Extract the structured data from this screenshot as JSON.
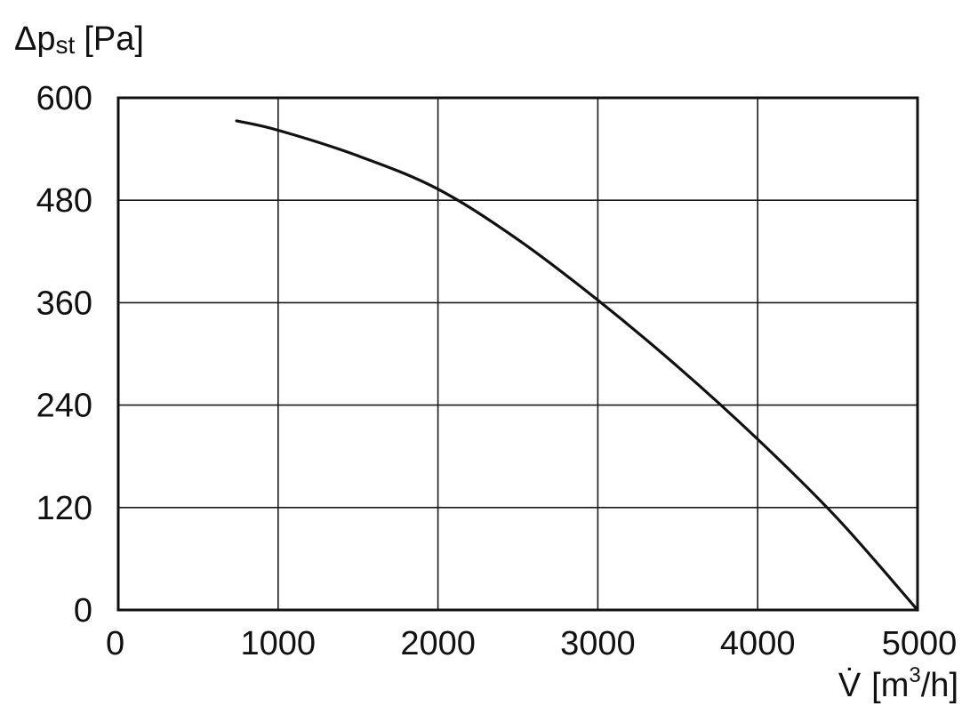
{
  "chart_data": {
    "type": "line",
    "ylabel": {
      "symbol": "Δp",
      "subscript": "st",
      "unit": "[Pa]"
    },
    "xlabel": {
      "symbol": "V̇",
      "unit_prefix": "[m",
      "unit_sup": "3",
      "unit_suffix": "/h]"
    },
    "xlim": [
      0,
      5000
    ],
    "ylim": [
      0,
      600
    ],
    "x_ticks": [
      0,
      1000,
      2000,
      3000,
      4000,
      5000
    ],
    "y_ticks": [
      0,
      120,
      240,
      360,
      480,
      600
    ],
    "x_tick_labels": [
      "0",
      "1000",
      "2000",
      "3000",
      "4000",
      "5000"
    ],
    "y_tick_labels": [
      "0",
      "120",
      "240",
      "360",
      "480",
      "600"
    ],
    "grid": true,
    "series": [
      {
        "x": [
          740,
          1000,
          1500,
          2000,
          2500,
          3000,
          3500,
          4000,
          4500,
          5000
        ],
        "y": [
          573,
          562,
          532,
          493,
          434,
          363,
          285,
          200,
          107,
          0
        ]
      }
    ]
  }
}
